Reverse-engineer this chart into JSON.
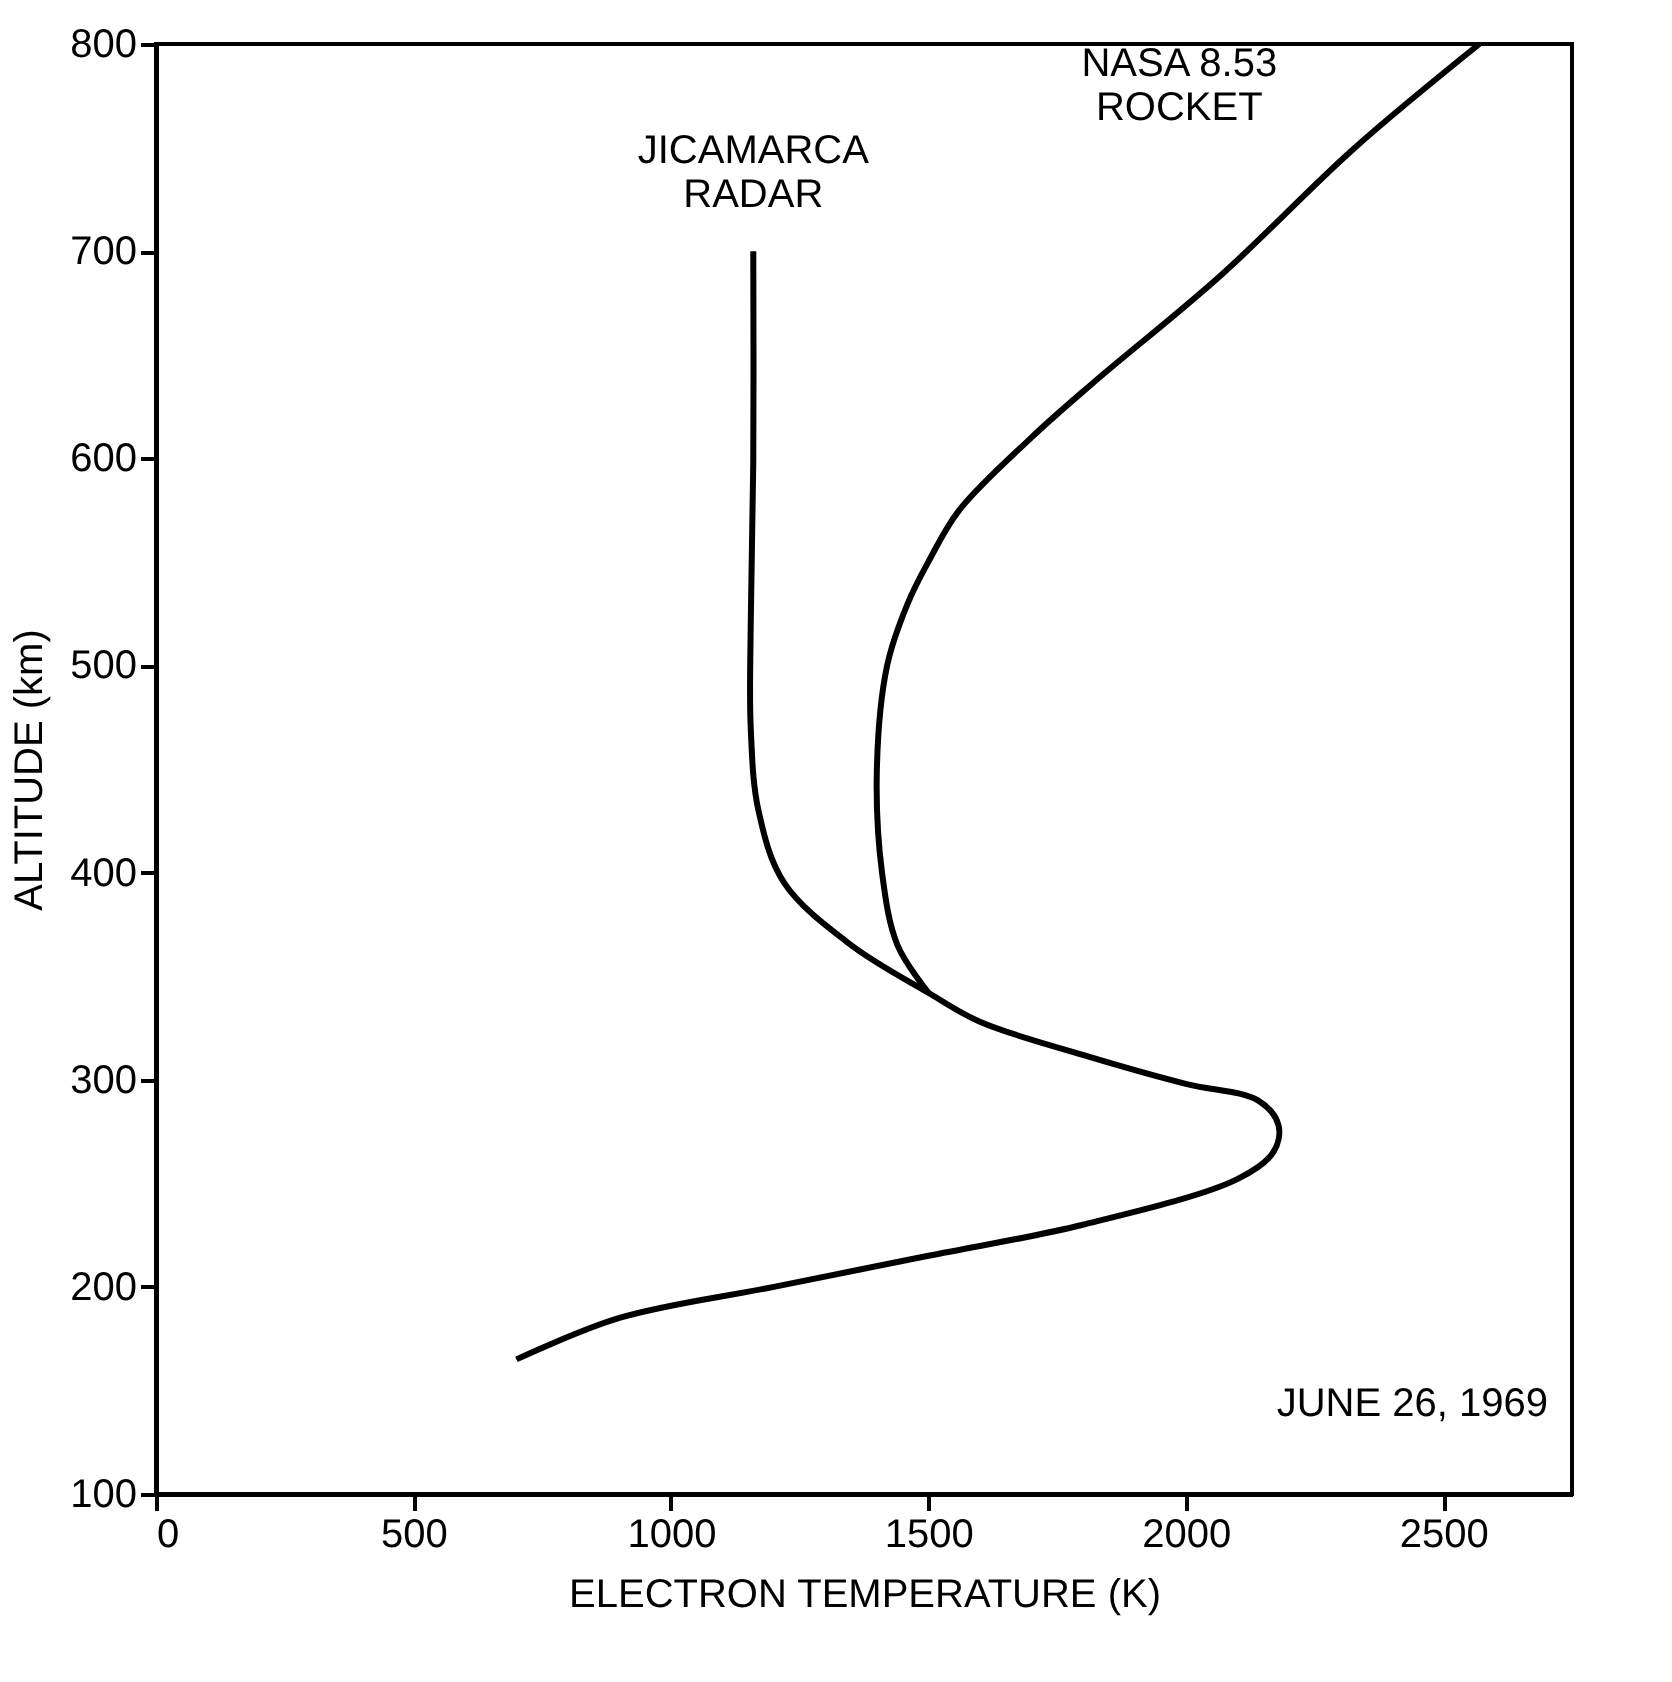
{
  "chart_data": {
    "type": "line",
    "xlabel": "ELECTRON TEMPERATURE (K)",
    "ylabel": "ALTITUDE (km)",
    "xlim": [
      0,
      2750
    ],
    "xticks": [
      0,
      500,
      1000,
      1500,
      2000,
      2500
    ],
    "ylim": [
      100,
      800
    ],
    "yticks": [
      100,
      200,
      300,
      400,
      500,
      600,
      700,
      800
    ],
    "grid": false,
    "marker": "none",
    "line_style": "solid",
    "annotations": [
      "JUNE 26, 1969"
    ],
    "series": [
      {
        "name": "JICAMARCA\nRADAR",
        "color": "#000000",
        "x": [
          700,
          900,
          1200,
          1500,
          1800,
          2100,
          2170,
          2180,
          2140,
          2000,
          1800,
          1600,
          1500,
          1350,
          1220,
          1170,
          1155,
          1155,
          1160,
          1160
        ],
        "values": [
          165,
          185,
          200,
          215,
          230,
          252,
          265,
          278,
          290,
          298,
          312,
          328,
          342,
          365,
          395,
          430,
          470,
          520,
          600,
          700
        ]
      },
      {
        "name": "NASA 8.53\nROCKET",
        "color": "#000000",
        "x": [
          1500,
          1440,
          1410,
          1400,
          1420,
          1460,
          1500,
          1560,
          1700,
          1818,
          2071,
          2324,
          2570
        ],
        "values": [
          342,
          365,
          400,
          450,
          500,
          530,
          550,
          575,
          610,
          636,
          689,
          749,
          800
        ]
      }
    ]
  }
}
